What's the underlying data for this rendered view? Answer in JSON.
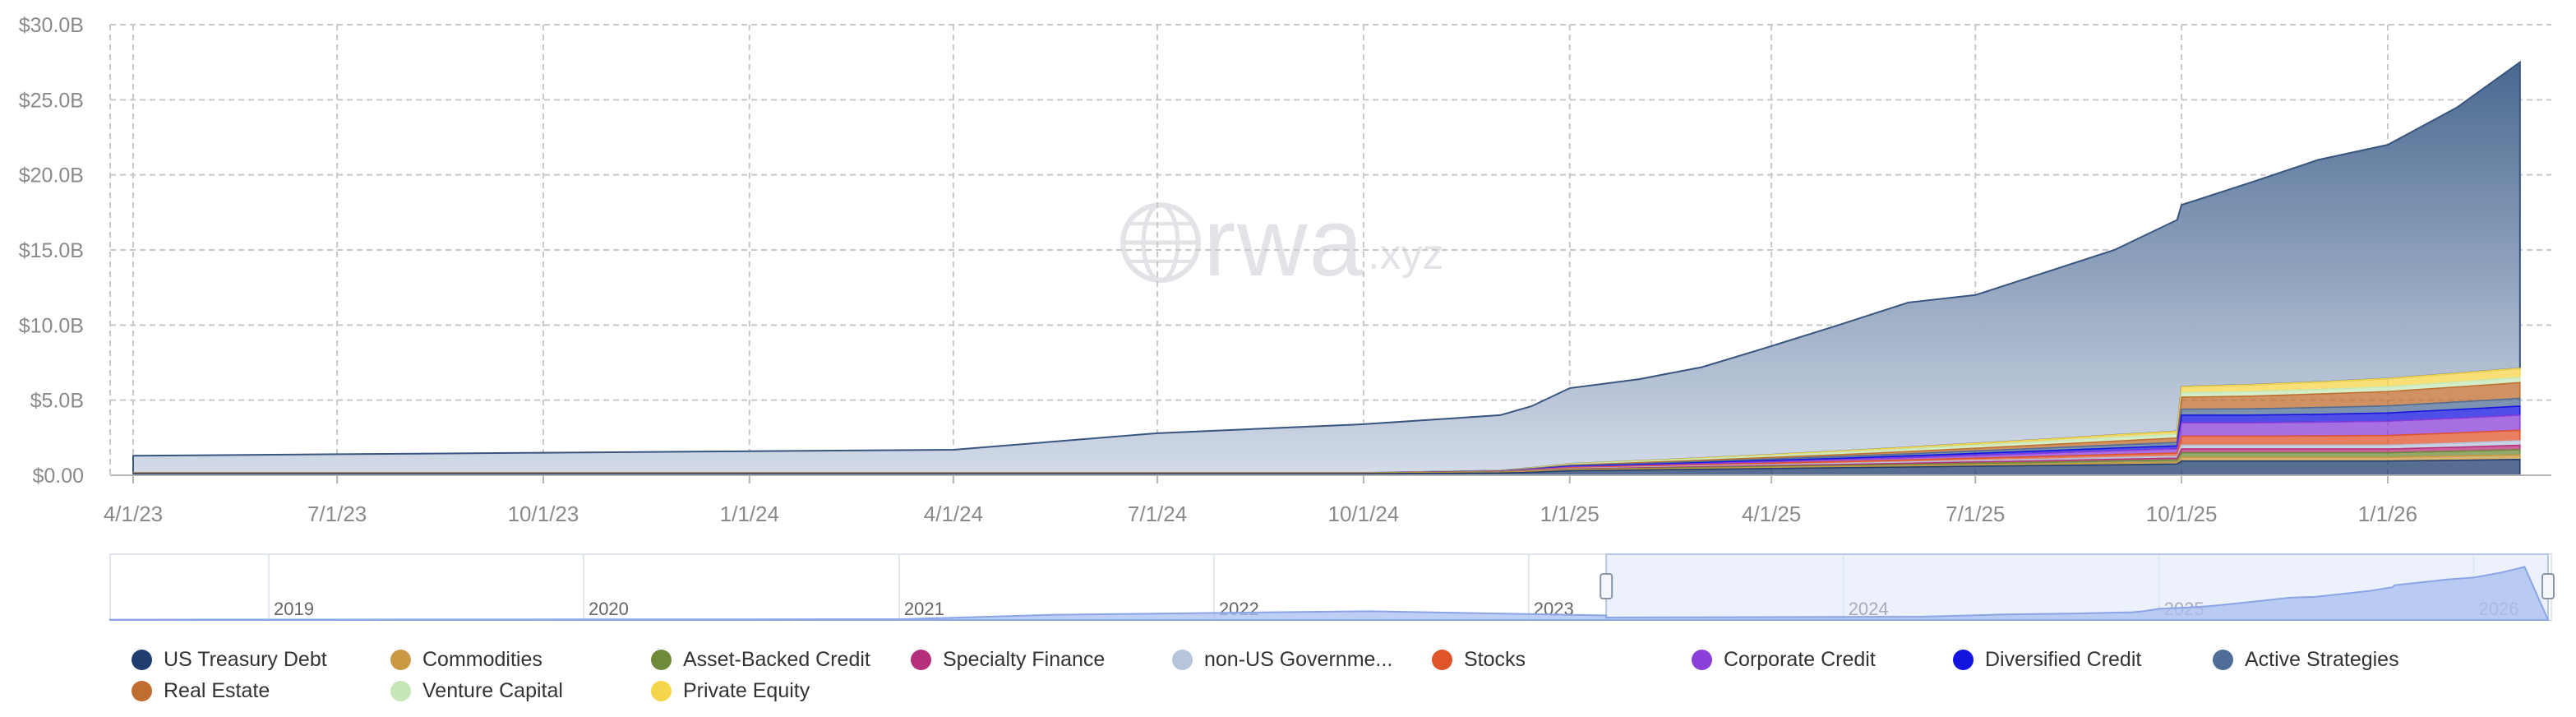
{
  "watermark": {
    "brand": "rwa",
    "tld": ".xyz",
    "logo_icon": "globe-icon"
  },
  "chart_data": {
    "type": "area",
    "stacked": true,
    "title": "",
    "xlabel": "",
    "ylabel": "",
    "ylim": [
      0,
      30
    ],
    "y_unit": "B USD",
    "y_ticks": [
      "$0.00",
      "$5.0B",
      "$10.0B",
      "$15.0B",
      "$20.0B",
      "$25.0B",
      "$30.0B"
    ],
    "x_ticks": [
      "4/1/23",
      "7/1/23",
      "10/1/23",
      "1/1/24",
      "4/1/24",
      "7/1/24",
      "10/1/24",
      "1/1/25",
      "4/1/25",
      "7/1/25",
      "10/1/25",
      "1/1/26"
    ],
    "grid": true,
    "legend_position": "bottom",
    "x": [
      "4/1/23",
      "7/1/23",
      "10/1/23",
      "1/1/24",
      "4/1/24",
      "7/1/24",
      "10/1/24",
      "12/1/24",
      "12/15/24",
      "1/1/25",
      "2/1/25",
      "3/1/25",
      "4/1/25",
      "5/1/25",
      "6/1/25",
      "7/1/25",
      "8/1/25",
      "9/1/25",
      "9/29/25",
      "10/1/25",
      "11/1/25",
      "12/1/25",
      "1/1/26",
      "2/1/26",
      "3/1/26"
    ],
    "series": [
      {
        "name": "US Treasury Debt",
        "color": "#1f3d6e",
        "values": [
          0.1,
          0.1,
          0.1,
          0.1,
          0.1,
          0.1,
          0.1,
          0.15,
          0.2,
          0.3,
          0.35,
          0.4,
          0.45,
          0.5,
          0.55,
          0.6,
          0.65,
          0.7,
          0.75,
          0.95,
          0.95,
          0.95,
          0.95,
          1.0,
          1.05
        ]
      },
      {
        "name": "Commodities",
        "color": "#c99a43",
        "values": [
          0.05,
          0.05,
          0.05,
          0.05,
          0.05,
          0.05,
          0.05,
          0.05,
          0.06,
          0.06,
          0.07,
          0.07,
          0.08,
          0.08,
          0.09,
          0.1,
          0.1,
          0.12,
          0.12,
          0.25,
          0.25,
          0.25,
          0.25,
          0.28,
          0.3
        ]
      },
      {
        "name": "Asset-Backed Credit",
        "color": "#6f8b3a",
        "values": [
          0.01,
          0.01,
          0.01,
          0.01,
          0.01,
          0.01,
          0.01,
          0.02,
          0.02,
          0.03,
          0.04,
          0.05,
          0.06,
          0.07,
          0.08,
          0.1,
          0.12,
          0.14,
          0.15,
          0.3,
          0.3,
          0.3,
          0.3,
          0.32,
          0.35
        ]
      },
      {
        "name": "Specialty Finance",
        "color": "#b5307a",
        "values": [
          0,
          0,
          0,
          0,
          0,
          0,
          0,
          0.01,
          0.02,
          0.03,
          0.04,
          0.05,
          0.06,
          0.07,
          0.08,
          0.09,
          0.1,
          0.11,
          0.12,
          0.25,
          0.25,
          0.25,
          0.25,
          0.27,
          0.3
        ]
      },
      {
        "name": "non-US Governme...",
        "color": "#b6c4dc",
        "values": [
          0,
          0,
          0,
          0,
          0,
          0,
          0,
          0.01,
          0.02,
          0.03,
          0.04,
          0.05,
          0.06,
          0.07,
          0.08,
          0.09,
          0.1,
          0.11,
          0.12,
          0.25,
          0.25,
          0.25,
          0.25,
          0.27,
          0.3
        ]
      },
      {
        "name": "Stocks",
        "color": "#e0542b",
        "values": [
          0,
          0,
          0,
          0,
          0,
          0,
          0,
          0.01,
          0.03,
          0.05,
          0.06,
          0.08,
          0.1,
          0.12,
          0.14,
          0.16,
          0.18,
          0.2,
          0.22,
          0.6,
          0.6,
          0.62,
          0.65,
          0.68,
          0.7
        ]
      },
      {
        "name": "Corporate Credit",
        "color": "#8b3fd9",
        "values": [
          0,
          0,
          0,
          0,
          0,
          0,
          0,
          0.01,
          0.03,
          0.05,
          0.06,
          0.08,
          0.1,
          0.12,
          0.15,
          0.18,
          0.22,
          0.25,
          0.28,
          0.9,
          0.9,
          0.92,
          0.95,
          0.98,
          1.0
        ]
      },
      {
        "name": "Diversified Credit",
        "color": "#1414e0",
        "values": [
          0,
          0,
          0,
          0,
          0,
          0,
          0,
          0.01,
          0.02,
          0.04,
          0.05,
          0.06,
          0.08,
          0.1,
          0.12,
          0.14,
          0.16,
          0.18,
          0.2,
          0.5,
          0.5,
          0.52,
          0.55,
          0.58,
          0.6
        ]
      },
      {
        "name": "Active Strategies",
        "color": "#4f6e97",
        "values": [
          0,
          0,
          0,
          0,
          0,
          0,
          0,
          0.01,
          0.03,
          0.05,
          0.07,
          0.08,
          0.1,
          0.12,
          0.14,
          0.16,
          0.18,
          0.2,
          0.22,
          0.4,
          0.42,
          0.45,
          0.47,
          0.5,
          0.52
        ]
      },
      {
        "name": "Real Estate",
        "color": "#c06e2f",
        "values": [
          0,
          0,
          0,
          0,
          0,
          0,
          0,
          0.01,
          0.02,
          0.04,
          0.06,
          0.08,
          0.1,
          0.12,
          0.15,
          0.18,
          0.22,
          0.26,
          0.3,
          0.8,
          0.85,
          0.9,
          0.95,
          1.0,
          1.05
        ]
      },
      {
        "name": "Venture Capital",
        "color": "#c6e8b8",
        "values": [
          0,
          0,
          0,
          0,
          0,
          0,
          0,
          0.01,
          0.02,
          0.05,
          0.08,
          0.1,
          0.12,
          0.15,
          0.18,
          0.2,
          0.22,
          0.25,
          0.26,
          0.3,
          0.3,
          0.3,
          0.32,
          0.33,
          0.35
        ]
      },
      {
        "name": "Private Equity",
        "color": "#f5d64a",
        "values": [
          0,
          0,
          0,
          0,
          0,
          0,
          0,
          0.01,
          0.02,
          0.03,
          0.04,
          0.05,
          0.06,
          0.08,
          0.1,
          0.12,
          0.14,
          0.16,
          0.18,
          0.4,
          0.45,
          0.5,
          0.55,
          0.58,
          0.6
        ]
      }
    ],
    "total": [
      1.3,
      1.4,
      1.5,
      1.6,
      1.7,
      2.8,
      3.4,
      4.0,
      4.6,
      5.8,
      6.4,
      7.2,
      8.6,
      10.0,
      11.5,
      12.0,
      13.5,
      15.0,
      17.0,
      18.0,
      19.5,
      21.0,
      22.0,
      24.5,
      27.5
    ],
    "navigator": {
      "x_ticks": [
        "2019",
        "2020",
        "2021",
        "2022",
        "2023",
        "2024",
        "2025",
        "2026"
      ],
      "selected_range": [
        "4/1/23",
        "3/1/26"
      ]
    }
  }
}
